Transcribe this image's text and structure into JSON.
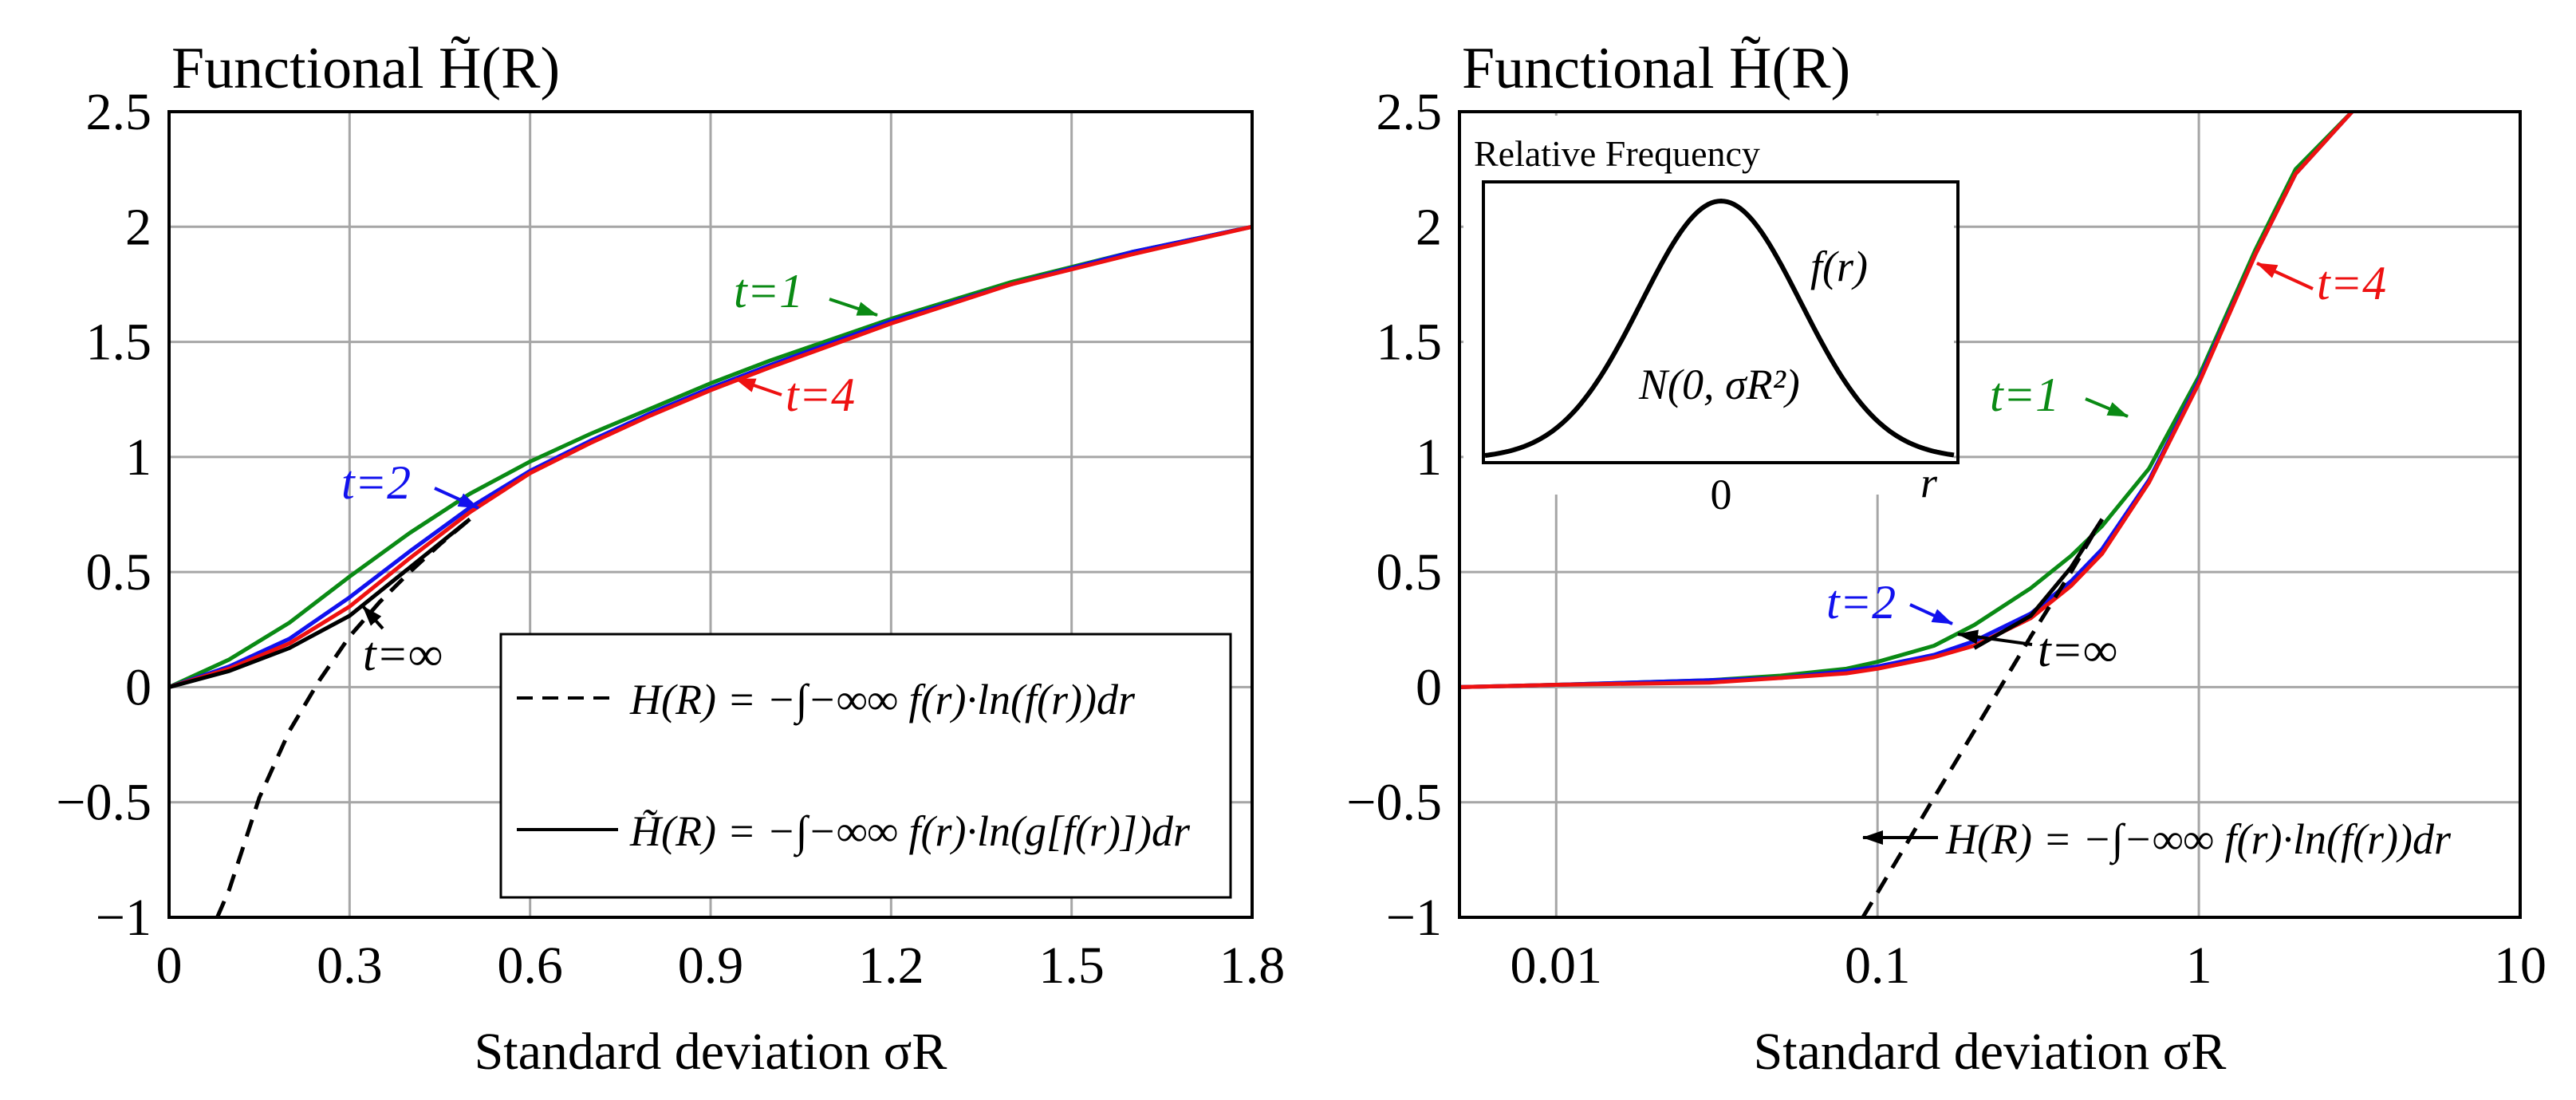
{
  "chart_data": [
    {
      "type": "line",
      "title": "Functional H̃(R)",
      "xlabel": "Standard deviation σR",
      "ylabel": "",
      "xscale": "linear",
      "xlim": [
        0,
        1.8
      ],
      "ylim": [
        -1,
        2.5
      ],
      "xticks": [
        "0",
        "0.3",
        "0.6",
        "0.9",
        "1.2",
        "1.5",
        "1.8"
      ],
      "yticks": [
        "2.5",
        "2",
        "1.5",
        "1",
        "0.5",
        "0",
        "−0.5",
        "−1"
      ],
      "grid": true,
      "legend_position": "bottom-right",
      "legend": [
        {
          "style": "dashed",
          "formula": "H(R) = −∫−∞∞ f(r)·ln(f(r))dr"
        },
        {
          "style": "solid",
          "formula": "H̃(R) = −∫−∞∞ f(r)·ln(g[f(r)])dr"
        }
      ],
      "series": [
        {
          "name": "t=1",
          "color": "#0a8a14",
          "style": "solid",
          "x": [
            0,
            0.1,
            0.2,
            0.3,
            0.4,
            0.5,
            0.6,
            0.7,
            0.8,
            0.9,
            1.0,
            1.2,
            1.4,
            1.6,
            1.8
          ],
          "y": [
            0,
            0.12,
            0.28,
            0.48,
            0.67,
            0.84,
            0.98,
            1.1,
            1.21,
            1.32,
            1.42,
            1.6,
            1.76,
            1.89,
            2.0
          ]
        },
        {
          "name": "t=2",
          "color": "#1111ee",
          "style": "solid",
          "x": [
            0,
            0.1,
            0.2,
            0.3,
            0.4,
            0.5,
            0.6,
            0.7,
            0.8,
            0.9,
            1.0,
            1.2,
            1.4,
            1.6,
            1.8
          ],
          "y": [
            0,
            0.09,
            0.21,
            0.39,
            0.59,
            0.78,
            0.94,
            1.07,
            1.19,
            1.3,
            1.4,
            1.59,
            1.75,
            1.89,
            2.0
          ]
        },
        {
          "name": "t=4",
          "color": "#ee1111",
          "style": "solid",
          "x": [
            0,
            0.1,
            0.2,
            0.3,
            0.4,
            0.5,
            0.6,
            0.7,
            0.8,
            0.9,
            1.0,
            1.2,
            1.4,
            1.6,
            1.8
          ],
          "y": [
            0,
            0.08,
            0.19,
            0.35,
            0.56,
            0.76,
            0.93,
            1.06,
            1.18,
            1.29,
            1.39,
            1.58,
            1.75,
            1.88,
            2.0
          ]
        },
        {
          "name": "t=∞",
          "color": "#000000",
          "style": "solid",
          "x": [
            0,
            0.1,
            0.2,
            0.3,
            0.4,
            0.5
          ],
          "y": [
            0,
            0.07,
            0.17,
            0.31,
            0.52,
            0.73
          ]
        },
        {
          "name": "H(R)",
          "color": "#000000",
          "style": "dashed",
          "x": [
            0.08,
            0.1,
            0.15,
            0.2,
            0.25,
            0.3,
            0.35,
            0.4,
            0.45,
            0.5
          ],
          "y": [
            -1.11,
            -0.88,
            -0.48,
            -0.19,
            0.03,
            0.22,
            0.37,
            0.5,
            0.62,
            0.73
          ]
        }
      ],
      "annotations": [
        {
          "text": "t=1",
          "color": "#0a8a14"
        },
        {
          "text": "t=4",
          "color": "#ee1111"
        },
        {
          "text": "t=2",
          "color": "#1111ee"
        },
        {
          "text": "t=∞",
          "color": "#000000"
        }
      ]
    },
    {
      "type": "line",
      "title": "Functional H̃(R)",
      "xlabel": "Standard deviation σR",
      "ylabel": "",
      "xscale": "log",
      "xlim": [
        0.005,
        10
      ],
      "ylim": [
        -1,
        2.5
      ],
      "xticks": [
        "0.01",
        "0.1",
        "1",
        "10"
      ],
      "yticks": [
        "2.5",
        "2",
        "1.5",
        "1",
        "0.5",
        "0",
        "−0.5",
        "−1"
      ],
      "grid": true,
      "legend": [
        {
          "style": "dashed",
          "formula": "H(R) = −∫−∞∞ f(r)·ln(f(r))dr"
        }
      ],
      "inset": {
        "title": "Relative Frequency",
        "curve_label": "f(r)",
        "distribution_label": "N(0, σR²)",
        "x_tick": "0",
        "x_label": "r"
      },
      "series": [
        {
          "name": "t=1",
          "color": "#0a8a14",
          "style": "solid",
          "x": [
            0.005,
            0.01,
            0.03,
            0.05,
            0.08,
            0.1,
            0.15,
            0.2,
            0.3,
            0.4,
            0.5,
            0.7,
            1.0,
            1.5,
            2.0,
            3.0
          ],
          "y": [
            0,
            0.01,
            0.03,
            0.05,
            0.08,
            0.11,
            0.18,
            0.27,
            0.43,
            0.57,
            0.7,
            0.95,
            1.35,
            1.9,
            2.25,
            2.5
          ]
        },
        {
          "name": "t=2",
          "color": "#1111ee",
          "style": "solid",
          "x": [
            0.005,
            0.01,
            0.03,
            0.05,
            0.08,
            0.1,
            0.15,
            0.2,
            0.3,
            0.4,
            0.5,
            0.7,
            1.0,
            1.5,
            2.0,
            3.0
          ],
          "y": [
            0,
            0.01,
            0.03,
            0.04,
            0.07,
            0.09,
            0.14,
            0.2,
            0.32,
            0.46,
            0.6,
            0.9,
            1.33,
            1.88,
            2.23,
            2.5
          ]
        },
        {
          "name": "t=4",
          "color": "#ee1111",
          "style": "solid",
          "x": [
            0.005,
            0.01,
            0.03,
            0.05,
            0.08,
            0.1,
            0.15,
            0.2,
            0.3,
            0.4,
            0.5,
            0.7,
            1.0,
            1.5,
            2.0,
            3.0
          ],
          "y": [
            0,
            0.01,
            0.02,
            0.04,
            0.06,
            0.08,
            0.13,
            0.18,
            0.3,
            0.44,
            0.58,
            0.89,
            1.32,
            1.88,
            2.23,
            2.5
          ]
        },
        {
          "name": "t=∞",
          "color": "#000000",
          "style": "solid",
          "x": [
            0.2,
            0.3,
            0.4,
            0.5
          ],
          "y": [
            0.17,
            0.31,
            0.52,
            0.73
          ]
        },
        {
          "name": "H(R)",
          "color": "#000000",
          "style": "dashed",
          "x": [
            0.09,
            0.15,
            0.2,
            0.3,
            0.4,
            0.5
          ],
          "y": [
            -1,
            -0.48,
            -0.19,
            0.22,
            0.5,
            0.73
          ]
        }
      ],
      "annotations": [
        {
          "text": "t=4",
          "color": "#ee1111"
        },
        {
          "text": "t=1",
          "color": "#0a8a14"
        },
        {
          "text": "t=2",
          "color": "#1111ee"
        },
        {
          "text": "t=∞",
          "color": "#000000"
        }
      ]
    }
  ]
}
